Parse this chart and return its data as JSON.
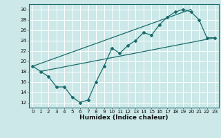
{
  "xlabel": "Humidex (Indice chaleur)",
  "bg_color": "#cce8e8",
  "grid_color": "#ffffff",
  "line_color": "#1a6b6b",
  "xlim": [
    -0.5,
    23.5
  ],
  "ylim": [
    11,
    31
  ],
  "xticks": [
    0,
    1,
    2,
    3,
    4,
    5,
    6,
    7,
    8,
    9,
    10,
    11,
    12,
    13,
    14,
    15,
    16,
    17,
    18,
    19,
    20,
    21,
    22,
    23
  ],
  "yticks": [
    12,
    14,
    16,
    18,
    20,
    22,
    24,
    26,
    28,
    30
  ],
  "curve1_x": [
    0,
    1,
    2,
    3,
    4,
    5,
    6,
    7,
    8,
    9,
    10,
    11,
    12,
    13,
    14,
    15,
    16,
    17,
    18,
    19,
    20,
    21,
    22,
    23
  ],
  "curve1_y": [
    19.0,
    18.0,
    17.0,
    15.0,
    15.0,
    13.0,
    12.0,
    12.5,
    16.0,
    19.0,
    22.5,
    21.5,
    23.0,
    24.0,
    25.5,
    25.0,
    27.0,
    28.5,
    29.5,
    30.0,
    29.5,
    28.0,
    24.5,
    24.5
  ],
  "line2_x": [
    0,
    20
  ],
  "line2_y": [
    19.0,
    30.0
  ],
  "line3_x": [
    1,
    23
  ],
  "line3_y": [
    18.0,
    24.5
  ],
  "xlabel_fontsize": 6.5,
  "tick_fontsize": 5.2
}
